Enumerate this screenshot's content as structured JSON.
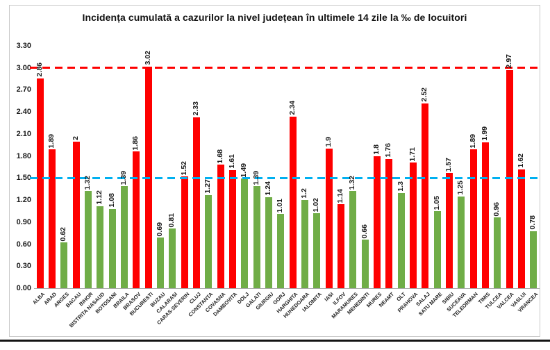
{
  "chart_data": {
    "type": "bar",
    "title": "Incidența cumulată a cazurilor la nivel județean în ultimele 14 zile la ‰ de locuitori",
    "xlabel": "",
    "ylabel": "",
    "ylim": [
      0,
      3.3
    ],
    "yticks": [
      "0.00",
      "0.30",
      "0.60",
      "0.90",
      "1.20",
      "1.50",
      "1.80",
      "2.10",
      "2.40",
      "2.70",
      "3.00",
      "3.30"
    ],
    "grid": false,
    "legend": false,
    "palette": {
      "red": "#fe0000",
      "green": "#70ad47"
    },
    "reference_lines": [
      {
        "value": 3.0,
        "color": "#fe0000",
        "style": "dashed",
        "name": "red-threshold-line-3.00"
      },
      {
        "value": 1.5,
        "color": "#00b0f0",
        "style": "dashed",
        "name": "blue-threshold-line-1.50"
      }
    ],
    "categories": [
      "ALBA",
      "ARAD",
      "ARGES",
      "BACAU",
      "BIHOR",
      "BISTRITA NASAUD",
      "BOTOSANI",
      "BRAILA",
      "BRASOV",
      "BUCURESTI",
      "BUZAU",
      "CALARASI",
      "CARAS-SEVERIN",
      "CLUJ",
      "CONSTANTA",
      "COVASNA",
      "DAMBOVITA",
      "DOLJ",
      "GALATI",
      "GIURGIU",
      "GORJ",
      "HARGHITA",
      "HUNEDOARA",
      "IALOMITA",
      "IASI",
      "ILFOV",
      "MARAMURES",
      "MEHEDINTI",
      "MURES",
      "NEAMT",
      "OLT",
      "PRAHOVA",
      "SALAJ",
      "SATU MARE",
      "SIBIU",
      "SUCEAVA",
      "TELEORMAN",
      "TIMIS",
      "TULCEA",
      "VALCEA",
      "VASLUI",
      "VRANCEA"
    ],
    "values": [
      2.86,
      1.89,
      0.62,
      2,
      1.32,
      1.12,
      1.08,
      1.39,
      1.86,
      3.02,
      0.69,
      0.81,
      1.52,
      2.33,
      1.27,
      1.68,
      1.61,
      1.49,
      1.39,
      1.24,
      1.01,
      2.34,
      1.2,
      1.02,
      1.9,
      1.14,
      1.32,
      0.66,
      1.8,
      1.76,
      1.3,
      1.71,
      2.52,
      1.05,
      1.57,
      1.25,
      1.89,
      1.99,
      0.96,
      2.97,
      1.62,
      0.78
    ],
    "value_labels": [
      "2.86",
      "1.89",
      "0.62",
      "2",
      "1.32",
      "1.12",
      "1.08",
      "1.39",
      "1.86",
      "3.02",
      "0.69",
      "0.81",
      "1.52",
      "2.33",
      "1.27",
      "1.68",
      "1.61",
      "1.49",
      "1.39",
      "1.24",
      "1.01",
      "2.34",
      "1.2",
      "1.02",
      "1.9",
      "1.14",
      "1.32",
      "0.66",
      "1.8",
      "1.76",
      "1.3",
      "1.71",
      "2.52",
      "1.05",
      "1.57",
      "1.25",
      "1.89",
      "1.99",
      "0.96",
      "2.97",
      "1.62",
      "0.78"
    ],
    "bar_colors": [
      "red",
      "red",
      "green",
      "red",
      "green",
      "green",
      "green",
      "green",
      "red",
      "red",
      "green",
      "green",
      "red",
      "red",
      "green",
      "red",
      "red",
      "green",
      "green",
      "green",
      "green",
      "red",
      "green",
      "green",
      "red",
      "red",
      "green",
      "green",
      "red",
      "red",
      "green",
      "red",
      "red",
      "green",
      "red",
      "green",
      "red",
      "red",
      "green",
      "red",
      "red",
      "green"
    ]
  }
}
